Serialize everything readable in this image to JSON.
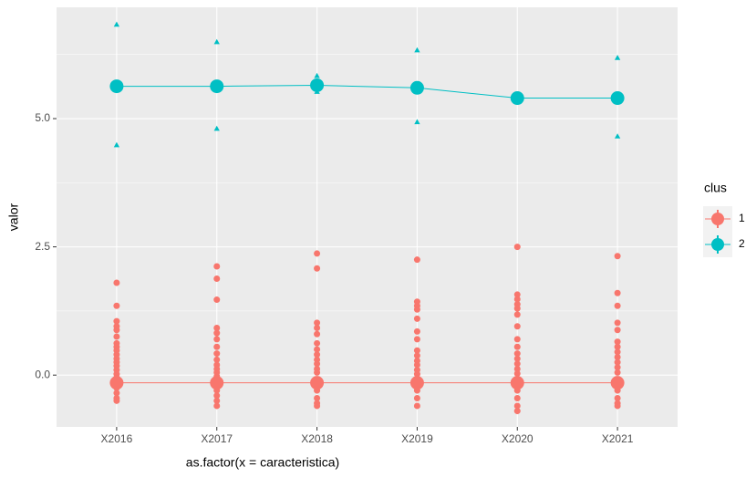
{
  "chart_data": {
    "type": "line",
    "x_label": "as.factor(x = caracteristica)",
    "y_label": "valor",
    "legend_title": "clus",
    "categories": [
      "X2016",
      "X2017",
      "X2018",
      "X2019",
      "X2020",
      "X2021"
    ],
    "ylim": [
      -1.01,
      7.17
    ],
    "yticks": [
      {
        "value": 0,
        "label": "0.0"
      },
      2.5,
      {
        "value": 5,
        "label": "5.0"
      }
    ],
    "minor_yticks": [
      1.25,
      3.75,
      6.25
    ],
    "grid": true,
    "series": [
      {
        "name": "1",
        "color": "#F8766D",
        "shape": "circle",
        "values": [
          -0.15,
          -0.15,
          -0.15,
          -0.15,
          -0.15,
          -0.15
        ],
        "points": [
          [
            1.8,
            1.35,
            1.05,
            0.95,
            0.88,
            0.75,
            0.62,
            0.55,
            0.48,
            0.4,
            0.32,
            0.25,
            0.18,
            0.1,
            0.02,
            -0.05,
            -0.25,
            -0.35,
            -0.45,
            -0.5
          ],
          [
            2.12,
            1.88,
            1.47,
            0.92,
            0.82,
            0.7,
            0.55,
            0.42,
            0.3,
            0.2,
            0.12,
            0.05,
            -0.02,
            -0.3,
            -0.4,
            -0.5,
            -0.6
          ],
          [
            2.37,
            2.08,
            1.02,
            0.92,
            0.8,
            0.62,
            0.5,
            0.4,
            0.3,
            0.22,
            0.12,
            0.05,
            -0.3,
            -0.45,
            -0.55,
            -0.6
          ],
          [
            2.25,
            1.43,
            1.35,
            1.28,
            1.1,
            0.85,
            0.7,
            0.48,
            0.38,
            0.28,
            0.2,
            0.1,
            0.02,
            -0.3,
            -0.45,
            -0.6
          ],
          [
            2.5,
            1.57,
            1.48,
            1.38,
            1.3,
            1.18,
            0.95,
            0.7,
            0.55,
            0.42,
            0.32,
            0.22,
            0.12,
            0.03,
            -0.3,
            -0.45,
            -0.6,
            -0.7
          ],
          [
            2.32,
            1.6,
            1.35,
            1.02,
            0.88,
            0.65,
            0.55,
            0.45,
            0.35,
            0.25,
            0.15,
            0.05,
            -0.3,
            -0.45,
            -0.55,
            -0.6
          ]
        ]
      },
      {
        "name": "2",
        "color": "#00BFC4",
        "shape": "triangle",
        "values": [
          5.63,
          5.63,
          5.65,
          5.6,
          5.4,
          5.4
        ],
        "points": [
          [
            6.83,
            4.48
          ],
          [
            6.49,
            4.8
          ],
          [
            5.83,
            5.52
          ],
          [
            6.33,
            4.93
          ],
          [
            5.42,
            5.38
          ],
          [
            6.18,
            4.65
          ]
        ]
      }
    ]
  }
}
